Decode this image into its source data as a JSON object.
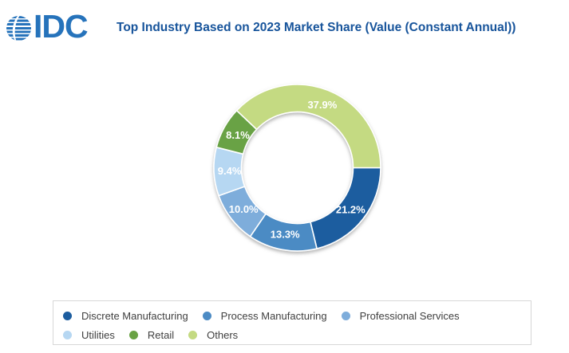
{
  "header": {
    "logo_text": "IDC",
    "title": "Top Industry Based on 2023 Market Share (Value (Constant Annual))"
  },
  "colors": {
    "title_text": "#17549b",
    "logo_blue": "#2673bb",
    "legend_border": "#d7d7d7",
    "legend_text": "#404040",
    "slice_label_text": "#ffffff"
  },
  "chart_data": {
    "type": "pie",
    "subtype": "donut",
    "title": "Top Industry Based on 2023 Market Share (Value (Constant Annual))",
    "unit": "percent share",
    "start_angle_deg": 90,
    "clockwise": true,
    "legend_position": "bottom",
    "segments": [
      {
        "label": "Discrete Manufacturing",
        "value": 21.2,
        "display": "21.2%",
        "color": "#1c5d9f"
      },
      {
        "label": "Process Manufacturing",
        "value": 13.3,
        "display": "13.3%",
        "color": "#4c8bc4"
      },
      {
        "label": "Professional Services",
        "value": 10.0,
        "display": "10.0%",
        "color": "#7eaddb"
      },
      {
        "label": "Utilities",
        "value": 9.4,
        "display": "9.4%",
        "color": "#b6d7f2"
      },
      {
        "label": "Retail",
        "value": 8.1,
        "display": "8.1%",
        "color": "#69a244"
      },
      {
        "label": "Others",
        "value": 37.9,
        "display": "37.9%",
        "color": "#c4da82"
      }
    ]
  }
}
